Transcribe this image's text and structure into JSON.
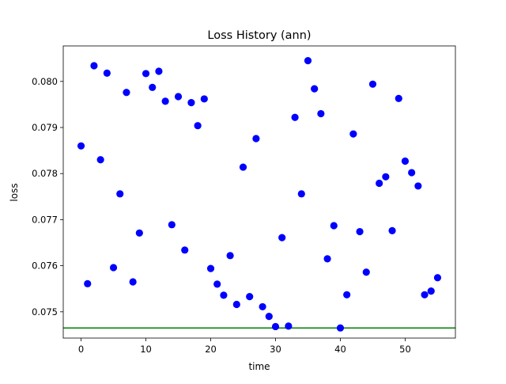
{
  "chart_data": {
    "type": "scatter",
    "title": "Loss History (ann)",
    "xlabel": "time",
    "ylabel": "loss",
    "xlim": [
      -2.75,
      57.75
    ],
    "ylim": [
      0.07443,
      0.08077
    ],
    "xticks": [
      0,
      10,
      20,
      30,
      40,
      50
    ],
    "xtick_labels": [
      "0",
      "10",
      "20",
      "30",
      "40",
      "50"
    ],
    "yticks": [
      0.075,
      0.076,
      0.077,
      0.078,
      0.079,
      0.08
    ],
    "ytick_labels": [
      "0.075",
      "0.076",
      "0.077",
      "0.078",
      "0.079",
      "0.080"
    ],
    "grid": false,
    "legend": null,
    "series": [
      {
        "color": "#0000ff",
        "marker": "circle",
        "x": [
          0,
          1,
          2,
          3,
          4,
          5,
          6,
          7,
          8,
          9,
          10,
          11,
          12,
          13,
          14,
          15,
          16,
          17,
          18,
          19,
          20,
          21,
          22,
          23,
          24,
          25,
          26,
          27,
          28,
          29,
          30,
          31,
          32,
          33,
          34,
          35,
          36,
          37,
          38,
          39,
          40,
          41,
          42,
          43,
          44,
          45,
          46,
          47,
          48,
          49,
          50,
          51,
          52,
          53,
          54,
          55
        ],
        "y": [
          0.0786,
          0.07561,
          0.08034,
          0.0783,
          0.08018,
          0.07596,
          0.07756,
          0.07976,
          0.07565,
          0.07671,
          0.08017,
          0.07987,
          0.08022,
          0.07957,
          0.07689,
          0.07967,
          0.07634,
          0.07954,
          0.07904,
          0.07962,
          0.07594,
          0.0756,
          0.07536,
          0.07622,
          0.07516,
          0.07814,
          0.07533,
          0.07876,
          0.07511,
          0.0749,
          0.07468,
          0.07661,
          0.07469,
          0.07922,
          0.07756,
          0.08045,
          0.07984,
          0.0793,
          0.07615,
          0.07687,
          0.07465,
          0.07537,
          0.07886,
          0.07674,
          0.07586,
          0.07994,
          0.07779,
          0.07793,
          0.07676,
          0.07963,
          0.07827,
          0.07802,
          0.07773,
          0.07537,
          0.07545,
          0.07574
        ]
      }
    ],
    "hline": {
      "y": 0.07465,
      "color": "#008000"
    }
  }
}
